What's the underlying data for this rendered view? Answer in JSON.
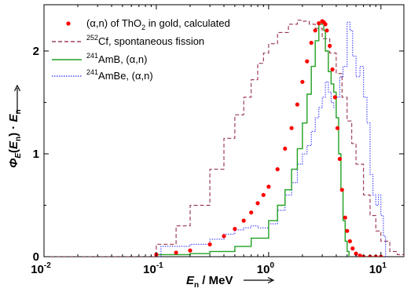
{
  "chart_data": {
    "type": "line",
    "title": "",
    "xlabel": "E_n / MeV",
    "ylabel": "Φ_E(E_n) · E_n",
    "xscale": "log",
    "xlim": [
      0.01,
      16
    ],
    "ylim": [
      0,
      2.45
    ],
    "x_ticks": [
      0.01,
      0.1,
      1,
      10
    ],
    "x_tick_labels": [
      "-2",
      "-1",
      "0",
      "1"
    ],
    "y_ticks": [
      0,
      1,
      2
    ],
    "y_tick_labels": [
      "0",
      "1",
      "2"
    ],
    "grid": false,
    "legend_position": "top-left",
    "series": [
      {
        "name": "(α,n) of ThO2 in gold, calculated",
        "label_parts": [
          "(",
          "α",
          ",n) of ThO",
          "2",
          " in gold, calculated"
        ],
        "style": "markers",
        "color": "#ff0000",
        "x": [
          0.1,
          0.15,
          0.2,
          0.3,
          0.4,
          0.5,
          0.6,
          0.7,
          0.8,
          0.9,
          1.0,
          1.2,
          1.4,
          1.6,
          1.8,
          2.0,
          2.2,
          2.4,
          2.6,
          2.8,
          3.0,
          3.1,
          3.2,
          3.3,
          3.5,
          3.7,
          3.9,
          4.1,
          4.3,
          4.5,
          4.8,
          5.0,
          5.3,
          5.6,
          6.0,
          6.5,
          7.0,
          8.0,
          9.0,
          10.0
        ],
        "y": [
          0.02,
          0.04,
          0.06,
          0.12,
          0.2,
          0.27,
          0.35,
          0.43,
          0.52,
          0.6,
          0.68,
          0.85,
          1.05,
          1.25,
          1.48,
          1.7,
          1.9,
          2.08,
          2.2,
          2.27,
          2.29,
          2.28,
          2.26,
          2.2,
          2.05,
          1.82,
          1.55,
          1.25,
          0.95,
          0.65,
          0.38,
          0.25,
          0.15,
          0.08,
          0.03,
          0.01,
          0.0,
          0.0,
          0.0,
          0.0
        ]
      },
      {
        "name": "252Cf, spontaneous fission",
        "label_parts": [
          "252",
          "Cf, spontaneous fission"
        ],
        "style": "dashed-step",
        "color": "#8b1a3a",
        "x": [
          0.01,
          0.05,
          0.1,
          0.15,
          0.2,
          0.3,
          0.4,
          0.5,
          0.6,
          0.7,
          0.8,
          0.9,
          1.0,
          1.2,
          1.5,
          1.8,
          2.0,
          2.3,
          2.6,
          3.0,
          3.5,
          4.0,
          4.5,
          5.0,
          5.5,
          6.0,
          7.0,
          8.0,
          9.0,
          10.0,
          12.0,
          14.0,
          16.0
        ],
        "y": [
          0.0,
          0.0,
          0.12,
          0.3,
          0.5,
          0.85,
          1.15,
          1.38,
          1.55,
          1.72,
          1.88,
          1.98,
          2.07,
          2.18,
          2.26,
          2.3,
          2.29,
          2.26,
          2.22,
          2.12,
          1.98,
          1.78,
          1.55,
          1.32,
          1.1,
          0.9,
          0.6,
          0.4,
          0.25,
          0.15,
          0.05,
          0.02,
          0.0
        ]
      },
      {
        "name": "241AmB, (α,n)",
        "label_parts": [
          "241",
          "AmB,   (",
          "α",
          ",n)"
        ],
        "style": "step",
        "color": "#22a022",
        "x": [
          0.1,
          0.2,
          0.3,
          0.5,
          0.7,
          1.0,
          1.2,
          1.4,
          1.6,
          1.8,
          2.0,
          2.2,
          2.4,
          2.6,
          2.8,
          3.0,
          3.1,
          3.2,
          3.4,
          3.6,
          3.8,
          4.0,
          4.2,
          4.4,
          4.6,
          4.8,
          5.0,
          5.2
        ],
        "y": [
          0.02,
          0.03,
          0.05,
          0.1,
          0.18,
          0.35,
          0.5,
          0.65,
          0.85,
          1.05,
          1.3,
          1.58,
          1.85,
          2.1,
          2.26,
          2.27,
          2.2,
          2.0,
          1.8,
          1.68,
          1.6,
          1.35,
          1.0,
          0.65,
          0.35,
          0.15,
          0.05,
          0.0
        ]
      },
      {
        "name": "241AmBe, (α,n)",
        "label_parts": [
          "241",
          "AmBe, (",
          "α",
          ",n)"
        ],
        "style": "dotted-step",
        "color": "#2a2aff",
        "x": [
          0.1,
          0.11,
          0.2,
          0.3,
          0.4,
          0.5,
          0.6,
          0.7,
          0.8,
          1.0,
          1.2,
          1.4,
          1.6,
          1.8,
          2.0,
          2.2,
          2.4,
          2.6,
          2.8,
          3.0,
          3.2,
          3.4,
          3.6,
          3.8,
          4.0,
          4.3,
          4.6,
          5.0,
          5.3,
          5.6,
          6.0,
          6.5,
          7.0,
          7.5,
          8.0,
          8.5,
          9.0,
          9.5,
          10.0,
          10.5,
          11.0
        ],
        "y": [
          0.0,
          0.1,
          0.12,
          0.17,
          0.22,
          0.26,
          0.28,
          0.3,
          0.28,
          0.32,
          0.45,
          0.6,
          0.72,
          0.9,
          1.0,
          1.08,
          1.22,
          1.35,
          1.45,
          1.55,
          1.7,
          1.6,
          1.5,
          1.45,
          1.55,
          1.75,
          1.85,
          2.28,
          2.2,
          1.95,
          1.75,
          1.85,
          1.55,
          1.3,
          0.8,
          0.6,
          0.5,
          0.6,
          0.4,
          0.2,
          0.0
        ]
      }
    ]
  }
}
